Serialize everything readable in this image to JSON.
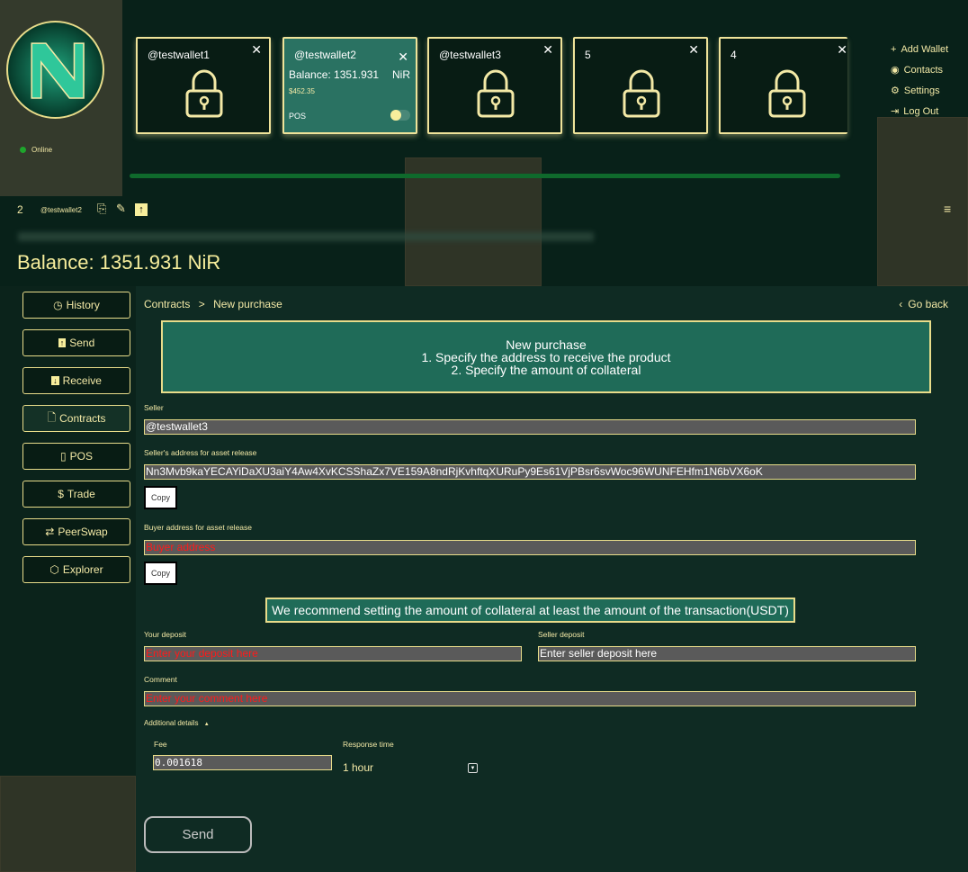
{
  "status": "Online",
  "wallet_cards": [
    {
      "name": "@testwallet1",
      "locked": true
    },
    {
      "name": "@testwallet2",
      "locked": false,
      "balance_label": "Balance: 1351.931",
      "unit": "NiR",
      "usd": "$452.35",
      "pos_label": "POS",
      "pos_enabled": true
    },
    {
      "name": "@testwallet3",
      "locked": true
    },
    {
      "name": "5",
      "locked": true
    },
    {
      "name": "4",
      "locked": true
    }
  ],
  "right_menu": {
    "add_wallet": "Add Wallet",
    "contacts": "Contacts",
    "settings": "Settings",
    "logout": "Log Out"
  },
  "account": {
    "index": "2",
    "name": "@testwallet2"
  },
  "balance": "Balance: 1351.931 NiR",
  "sidebar": [
    {
      "label": "History"
    },
    {
      "label": "Send"
    },
    {
      "label": "Receive"
    },
    {
      "label": "Contracts"
    },
    {
      "label": "POS"
    },
    {
      "label": "Trade"
    },
    {
      "label": "PeerSwap"
    },
    {
      "label": "Explorer"
    }
  ],
  "breadcrumb": {
    "parent": "Contracts",
    "sep": ">",
    "current": "New purchase"
  },
  "go_back": "Go back",
  "banner": {
    "title": "New purchase",
    "line1": "1. Specify the address to receive the product",
    "line2": "2. Specify the amount of collateral"
  },
  "form": {
    "seller_label": "Seller",
    "seller_value": "@testwallet3",
    "seller_addr_label": "Seller's address for asset release",
    "seller_addr_value": "Nn3Mvb9kaYECAYiDaXU3aiY4Aw4XvKCSShaZx7VE159A8ndRjKvhftqXURuPy9Es61VjPBsr6svWoc96WUNFEHfm1N6bVX6oK",
    "copy": "Copy",
    "buyer_addr_label": "Buyer address for asset release",
    "buyer_addr_placeholder": "Buyer address",
    "recommend": "We recommend setting the amount of collateral at least the amount of the transaction(USDT)",
    "your_deposit_label": "Your deposit",
    "your_deposit_placeholder": "Enter your deposit here",
    "seller_deposit_label": "Seller deposit",
    "seller_deposit_placeholder": "Enter seller deposit here",
    "comment_label": "Comment",
    "comment_placeholder": "Enter your comment here",
    "additional": "Additional details",
    "fee_label": "Fee",
    "fee_value": "0.001618",
    "response_label": "Response time",
    "response_value": "1 hour",
    "send": "Send"
  },
  "colors": {
    "accent": "#f3e9a6",
    "panel": "#1f6b58",
    "placeholder": "#ff1a1a"
  }
}
